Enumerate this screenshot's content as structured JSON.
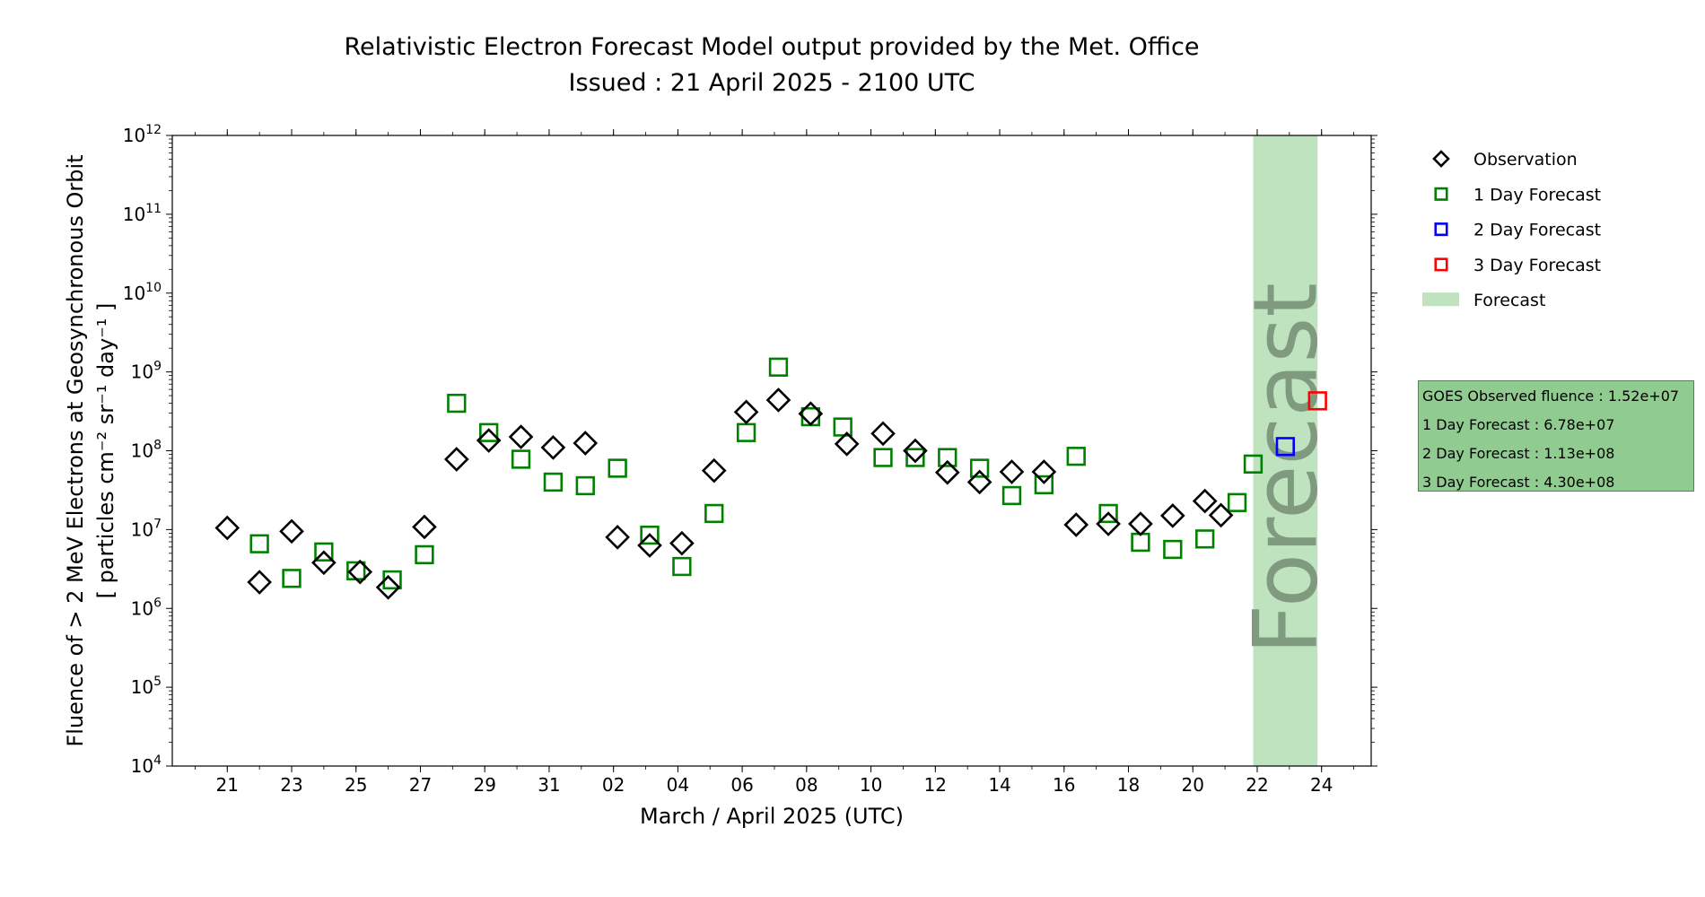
{
  "title": "Relativistic Electron Forecast Model output provided by the Met. Office",
  "subtitle": "Issued : 21 April 2025 - 2100 UTC",
  "info_box": [
    "GOES Observed fluence : 1.52e+07",
    "1 Day Forecast : 6.78e+07",
    "2 Day Forecast : 1.13e+08",
    "3 Day Forecast : 4.30e+08"
  ],
  "chart_data": {
    "type": "scatter",
    "title": "Relativistic Electron Forecast Model output provided by the Met. Office",
    "subtitle": "Issued : 21 April 2025 - 2100 UTC",
    "xlabel": "March / April 2025 (UTC)",
    "ylabel_line1": "Fluence of > 2 MeV Electrons at Geosynchronous Orbit",
    "ylabel_line2": "[ particles cm⁻² sr⁻¹ day⁻¹ ]",
    "y_scale": "log",
    "ylim": [
      10000,
      1000000000000
    ],
    "y_ticks": [
      {
        "base": "10",
        "exp": "4",
        "value": 10000
      },
      {
        "base": "10",
        "exp": "5",
        "value": 100000
      },
      {
        "base": "10",
        "exp": "6",
        "value": 1000000
      },
      {
        "base": "10",
        "exp": "7",
        "value": 10000000
      },
      {
        "base": "10",
        "exp": "8",
        "value": 100000000
      },
      {
        "base": "10",
        "exp": "9",
        "value": 1000000000
      },
      {
        "base": "10",
        "exp": "10",
        "value": 10000000000
      },
      {
        "base": "10",
        "exp": "11",
        "value": 100000000000
      },
      {
        "base": "10",
        "exp": "12",
        "value": 1000000000000
      }
    ],
    "xlim": [
      "2025-03-19T07:00",
      "2025-04-25T13:00"
    ],
    "x_ticks": [
      {
        "label": "21",
        "date": "2025-03-21"
      },
      {
        "label": "23",
        "date": "2025-03-23"
      },
      {
        "label": "25",
        "date": "2025-03-25"
      },
      {
        "label": "27",
        "date": "2025-03-27"
      },
      {
        "label": "29",
        "date": "2025-03-29"
      },
      {
        "label": "31",
        "date": "2025-03-31"
      },
      {
        "label": "02",
        "date": "2025-04-02"
      },
      {
        "label": "04",
        "date": "2025-04-04"
      },
      {
        "label": "06",
        "date": "2025-04-06"
      },
      {
        "label": "08",
        "date": "2025-04-08"
      },
      {
        "label": "10",
        "date": "2025-04-10"
      },
      {
        "label": "12",
        "date": "2025-04-12"
      },
      {
        "label": "14",
        "date": "2025-04-14"
      },
      {
        "label": "16",
        "date": "2025-04-16"
      },
      {
        "label": "18",
        "date": "2025-04-18"
      },
      {
        "label": "20",
        "date": "2025-04-20"
      },
      {
        "label": "22",
        "date": "2025-04-22"
      },
      {
        "label": "24",
        "date": "2025-04-24"
      }
    ],
    "forecast_band": {
      "start": "2025-04-21T21:00",
      "end": "2025-04-23T21:00",
      "label": "Forecast",
      "color": "#bfe3bf"
    },
    "legend_position": "right",
    "series": [
      {
        "name": "Observation",
        "marker": "diamond",
        "color": "#000000",
        "points": [
          {
            "x": "2025-03-21T00:00",
            "y": 10500000
          },
          {
            "x": "2025-03-22T00:00",
            "y": 2150000
          },
          {
            "x": "2025-03-23T00:00",
            "y": 9500000
          },
          {
            "x": "2025-03-24T00:00",
            "y": 3800000
          },
          {
            "x": "2025-03-25T03:00",
            "y": 2900000
          },
          {
            "x": "2025-03-26T00:00",
            "y": 1850000
          },
          {
            "x": "2025-03-27T03:00",
            "y": 10800000
          },
          {
            "x": "2025-03-28T03:00",
            "y": 78000000
          },
          {
            "x": "2025-03-29T03:00",
            "y": 135000000
          },
          {
            "x": "2025-03-30T03:00",
            "y": 150000000
          },
          {
            "x": "2025-03-31T03:00",
            "y": 110000000
          },
          {
            "x": "2025-04-01T03:00",
            "y": 125000000
          },
          {
            "x": "2025-04-02T03:00",
            "y": 8000000
          },
          {
            "x": "2025-04-03T03:00",
            "y": 6300000
          },
          {
            "x": "2025-04-04T03:00",
            "y": 6700000
          },
          {
            "x": "2025-04-05T03:00",
            "y": 56000000
          },
          {
            "x": "2025-04-06T03:00",
            "y": 310000000
          },
          {
            "x": "2025-04-07T03:00",
            "y": 440000000
          },
          {
            "x": "2025-04-08T03:00",
            "y": 295000000
          },
          {
            "x": "2025-04-09T06:00",
            "y": 122000000
          },
          {
            "x": "2025-04-10T09:00",
            "y": 165000000
          },
          {
            "x": "2025-04-11T09:00",
            "y": 100000000
          },
          {
            "x": "2025-04-12T09:00",
            "y": 53000000
          },
          {
            "x": "2025-04-13T09:00",
            "y": 40000000
          },
          {
            "x": "2025-04-14T09:00",
            "y": 54000000
          },
          {
            "x": "2025-04-15T09:00",
            "y": 54000000
          },
          {
            "x": "2025-04-16T09:00",
            "y": 11500000
          },
          {
            "x": "2025-04-17T09:00",
            "y": 11800000
          },
          {
            "x": "2025-04-18T09:00",
            "y": 11800000
          },
          {
            "x": "2025-04-19T09:00",
            "y": 15000000
          },
          {
            "x": "2025-04-20T09:00",
            "y": 23000000
          },
          {
            "x": "2025-04-20T21:00",
            "y": 15200000
          }
        ]
      },
      {
        "name": "1 Day Forecast",
        "marker": "square",
        "color": "#008000",
        "points": [
          {
            "x": "2025-03-22T00:00",
            "y": 6600000
          },
          {
            "x": "2025-03-23T00:00",
            "y": 2400000
          },
          {
            "x": "2025-03-24T00:00",
            "y": 5200000
          },
          {
            "x": "2025-03-25T00:00",
            "y": 3000000
          },
          {
            "x": "2025-03-26T03:00",
            "y": 2300000
          },
          {
            "x": "2025-03-27T03:00",
            "y": 4800000
          },
          {
            "x": "2025-03-28T03:00",
            "y": 400000000
          },
          {
            "x": "2025-03-29T03:00",
            "y": 170000000
          },
          {
            "x": "2025-03-30T03:00",
            "y": 78000000
          },
          {
            "x": "2025-03-31T03:00",
            "y": 40000000
          },
          {
            "x": "2025-04-01T03:00",
            "y": 36000000
          },
          {
            "x": "2025-04-02T03:00",
            "y": 60000000
          },
          {
            "x": "2025-04-03T03:00",
            "y": 8500000
          },
          {
            "x": "2025-04-04T03:00",
            "y": 3400000
          },
          {
            "x": "2025-04-05T03:00",
            "y": 16000000
          },
          {
            "x": "2025-04-06T03:00",
            "y": 170000000
          },
          {
            "x": "2025-04-07T03:00",
            "y": 1150000000
          },
          {
            "x": "2025-04-08T03:00",
            "y": 270000000
          },
          {
            "x": "2025-04-09T03:00",
            "y": 200000000
          },
          {
            "x": "2025-04-10T09:00",
            "y": 82000000
          },
          {
            "x": "2025-04-11T09:00",
            "y": 82000000
          },
          {
            "x": "2025-04-12T09:00",
            "y": 82000000
          },
          {
            "x": "2025-04-13T09:00",
            "y": 60000000
          },
          {
            "x": "2025-04-14T09:00",
            "y": 27000000
          },
          {
            "x": "2025-04-15T09:00",
            "y": 37000000
          },
          {
            "x": "2025-04-16T09:00",
            "y": 85000000
          },
          {
            "x": "2025-04-17T09:00",
            "y": 16000000
          },
          {
            "x": "2025-04-18T09:00",
            "y": 6900000
          },
          {
            "x": "2025-04-19T09:00",
            "y": 5600000
          },
          {
            "x": "2025-04-20T09:00",
            "y": 7600000
          },
          {
            "x": "2025-04-21T09:00",
            "y": 22000000
          },
          {
            "x": "2025-04-21T21:00",
            "y": 67800000
          }
        ]
      },
      {
        "name": "2 Day Forecast",
        "marker": "square",
        "color": "#0000ff",
        "points": [
          {
            "x": "2025-04-22T21:00",
            "y": 113000000
          }
        ]
      },
      {
        "name": "3 Day Forecast",
        "marker": "square",
        "color": "#ff0000",
        "points": [
          {
            "x": "2025-04-23T21:00",
            "y": 430000000
          }
        ]
      }
    ],
    "legend": [
      {
        "label": "Observation",
        "marker": "diamond",
        "color": "#000000"
      },
      {
        "label": "1 Day Forecast",
        "marker": "square",
        "color": "#008000"
      },
      {
        "label": "2 Day Forecast",
        "marker": "square",
        "color": "#0000ff"
      },
      {
        "label": "3 Day Forecast",
        "marker": "square",
        "color": "#ff0000"
      },
      {
        "label": "Forecast",
        "marker": "patch",
        "color": "#bfe3bf"
      }
    ]
  }
}
